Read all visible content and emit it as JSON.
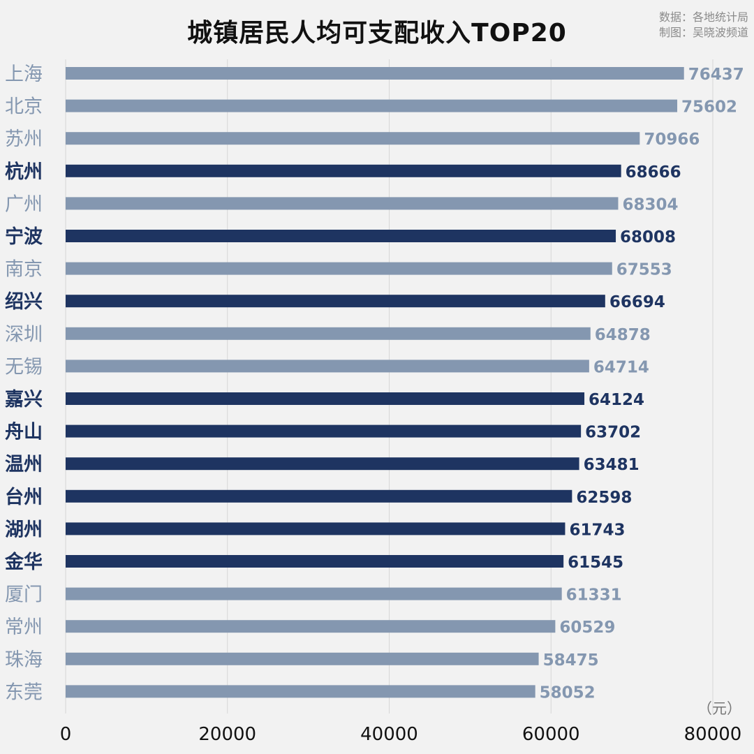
{
  "header": {
    "title": "城镇居民人均可支配收入TOP20",
    "source_line1": "数据：各地统计局",
    "source_line2": "制图：吴晓波频道"
  },
  "chart_data": {
    "type": "bar",
    "orientation": "horizontal",
    "title": "城镇居民人均可支配收入TOP20",
    "unit_label": "（元）",
    "xlim": [
      0,
      80000
    ],
    "xticks": [
      0,
      20000,
      40000,
      60000,
      80000
    ],
    "xtick_labels": [
      "0",
      "20000",
      "40000",
      "60000",
      "80000"
    ],
    "grid": true,
    "colors": {
      "highlight": "#1e3461",
      "normal": "#8497b0",
      "grid": "#d6d6d6",
      "background": "#f2f2f2"
    },
    "categories": [
      "上海",
      "北京",
      "苏州",
      "杭州",
      "广州",
      "宁波",
      "南京",
      "绍兴",
      "深圳",
      "无锡",
      "嘉兴",
      "舟山",
      "温州",
      "台州",
      "湖州",
      "金华",
      "厦门",
      "常州",
      "珠海",
      "东莞"
    ],
    "values": [
      76437,
      75602,
      70966,
      68666,
      68304,
      68008,
      67553,
      66694,
      64878,
      64714,
      64124,
      63702,
      63481,
      62598,
      61743,
      61545,
      61331,
      60529,
      58475,
      58052
    ],
    "value_labels": [
      "76437",
      "75602",
      "70966",
      "68666",
      "68304",
      "68008",
      "67553",
      "66694",
      "64878",
      "64714",
      "64124",
      "63702",
      "63481",
      "62598",
      "61743",
      "61545",
      "61331",
      "60529",
      "58475",
      "58052"
    ],
    "highlighted": [
      false,
      false,
      false,
      true,
      false,
      true,
      false,
      true,
      false,
      false,
      true,
      true,
      true,
      true,
      true,
      true,
      false,
      false,
      false,
      false
    ]
  }
}
